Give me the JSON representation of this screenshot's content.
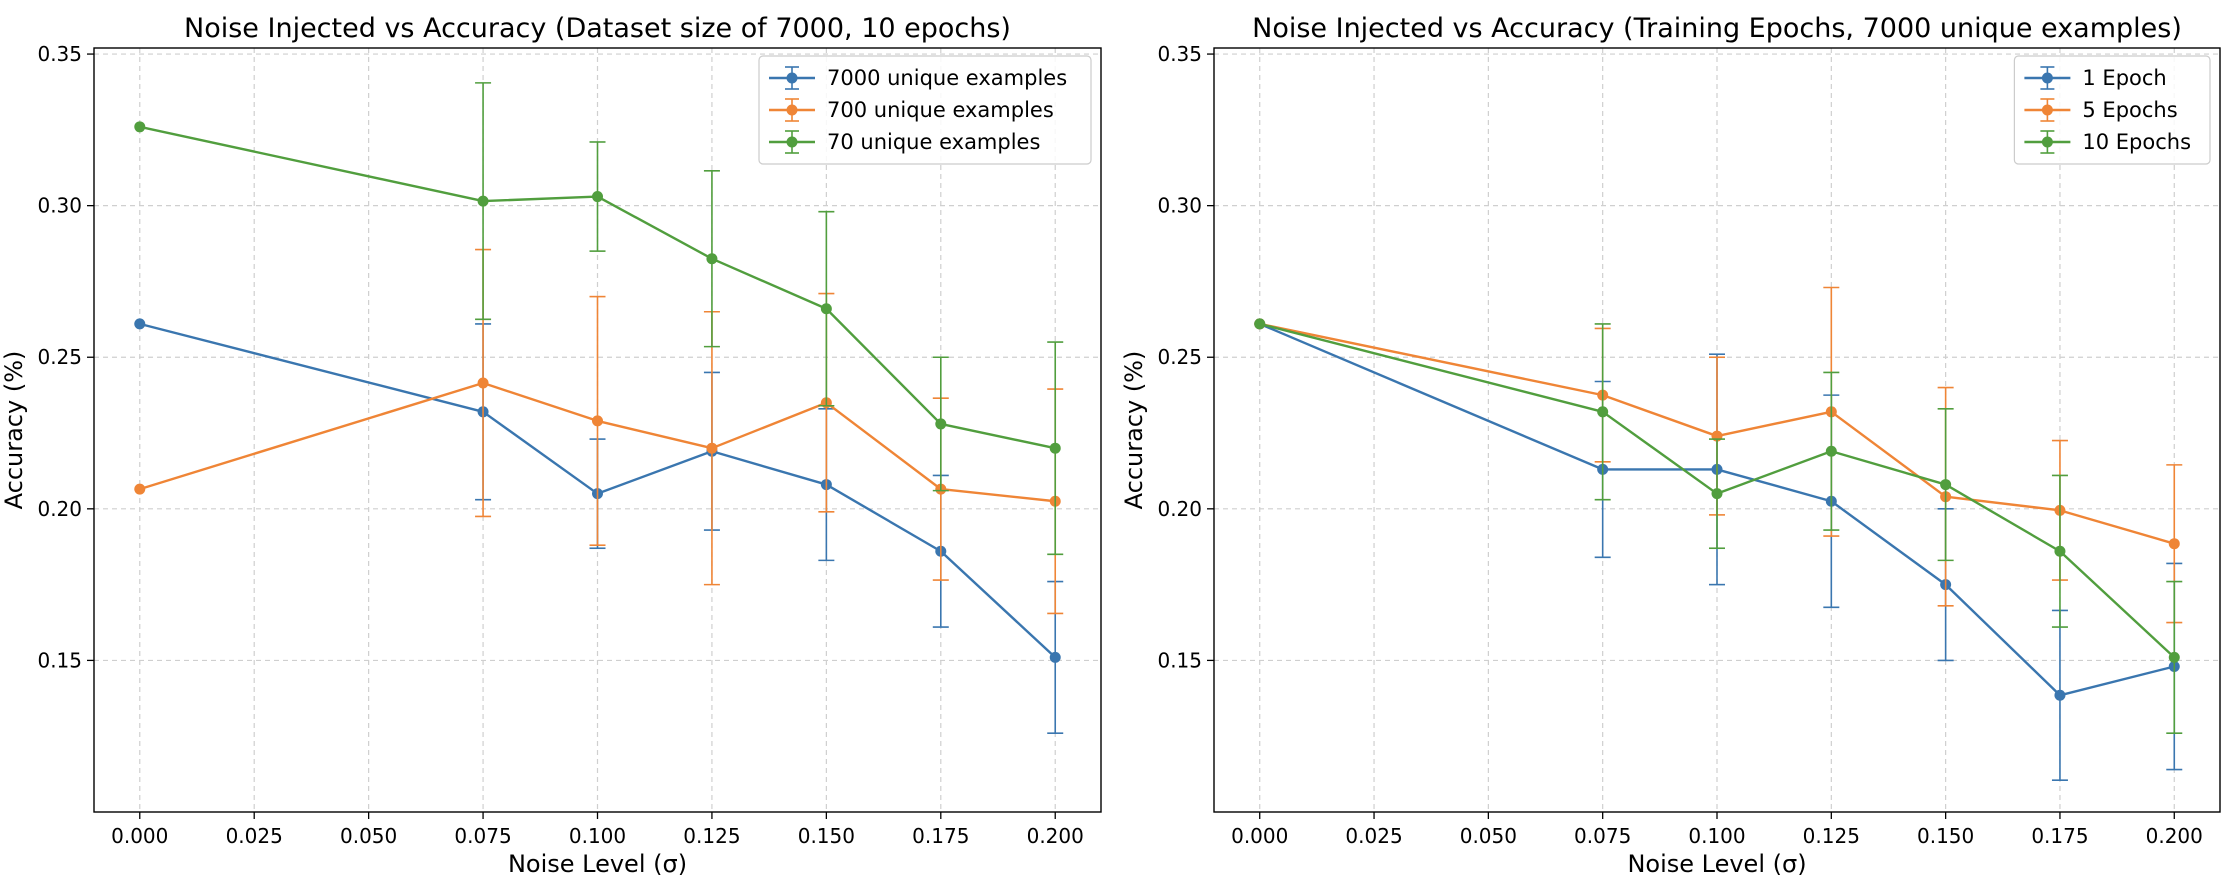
{
  "chart_data": [
    {
      "type": "line",
      "title": "Noise Injected vs Accuracy (Dataset size of 7000, 10 epochs)",
      "xlabel": "Noise Level (σ)",
      "ylabel": "Accuracy (%)",
      "xlim": [
        -0.01,
        0.21
      ],
      "ylim": [
        0.1,
        0.352
      ],
      "xticks": [
        "0.000",
        "0.025",
        "0.050",
        "0.075",
        "0.100",
        "0.125",
        "0.150",
        "0.175",
        "0.200"
      ],
      "yticks": [
        "0.15",
        "0.20",
        "0.25",
        "0.30",
        "0.35"
      ],
      "grid": true,
      "legend_position": "top-right",
      "x": [
        0.0,
        0.075,
        0.1,
        0.125,
        0.15,
        0.175,
        0.2
      ],
      "series": [
        {
          "name": "7000 unique examples",
          "color": "#3a76af",
          "values": [
            0.261,
            0.232,
            0.205,
            0.219,
            0.208,
            0.186,
            0.151
          ],
          "errors": [
            0.0,
            0.029,
            0.018,
            0.026,
            0.025,
            0.025,
            0.025
          ]
        },
        {
          "name": "700 unique examples",
          "color": "#ef8536",
          "values": [
            0.2065,
            0.2415,
            0.229,
            0.22,
            0.235,
            0.2065,
            0.2025
          ],
          "errors": [
            0.0,
            0.044,
            0.041,
            0.045,
            0.036,
            0.03,
            0.037
          ]
        },
        {
          "name": "70 unique examples",
          "color": "#519e3e",
          "values": [
            0.326,
            0.3015,
            0.303,
            0.2825,
            0.266,
            0.228,
            0.22
          ],
          "errors": [
            0.0,
            0.039,
            0.018,
            0.029,
            0.032,
            0.022,
            0.035
          ]
        }
      ]
    },
    {
      "type": "line",
      "title": "Noise Injected vs Accuracy (Training Epochs, 7000 unique examples)",
      "xlabel": "Noise Level (σ)",
      "ylabel": "Accuracy (%)",
      "xlim": [
        -0.01,
        0.21
      ],
      "ylim": [
        0.1,
        0.352
      ],
      "xticks": [
        "0.000",
        "0.025",
        "0.050",
        "0.075",
        "0.100",
        "0.125",
        "0.150",
        "0.175",
        "0.200"
      ],
      "yticks": [
        "0.15",
        "0.20",
        "0.25",
        "0.30",
        "0.35"
      ],
      "grid": true,
      "legend_position": "top-right",
      "x": [
        0.0,
        0.075,
        0.1,
        0.125,
        0.15,
        0.175,
        0.2
      ],
      "series": [
        {
          "name": "1 Epoch",
          "color": "#3a76af",
          "values": [
            0.261,
            0.213,
            0.213,
            0.2025,
            0.175,
            0.1385,
            0.148
          ],
          "errors": [
            0.0,
            0.029,
            0.038,
            0.035,
            0.025,
            0.028,
            0.034
          ]
        },
        {
          "name": "5 Epochs",
          "color": "#ef8536",
          "values": [
            0.261,
            0.2375,
            0.224,
            0.232,
            0.204,
            0.1995,
            0.1885
          ],
          "errors": [
            0.0,
            0.022,
            0.026,
            0.041,
            0.036,
            0.023,
            0.026
          ]
        },
        {
          "name": "10 Epochs",
          "color": "#519e3e",
          "values": [
            0.261,
            0.232,
            0.205,
            0.219,
            0.208,
            0.186,
            0.151
          ],
          "errors": [
            0.0,
            0.029,
            0.018,
            0.026,
            0.025,
            0.025,
            0.025
          ]
        }
      ]
    }
  ]
}
